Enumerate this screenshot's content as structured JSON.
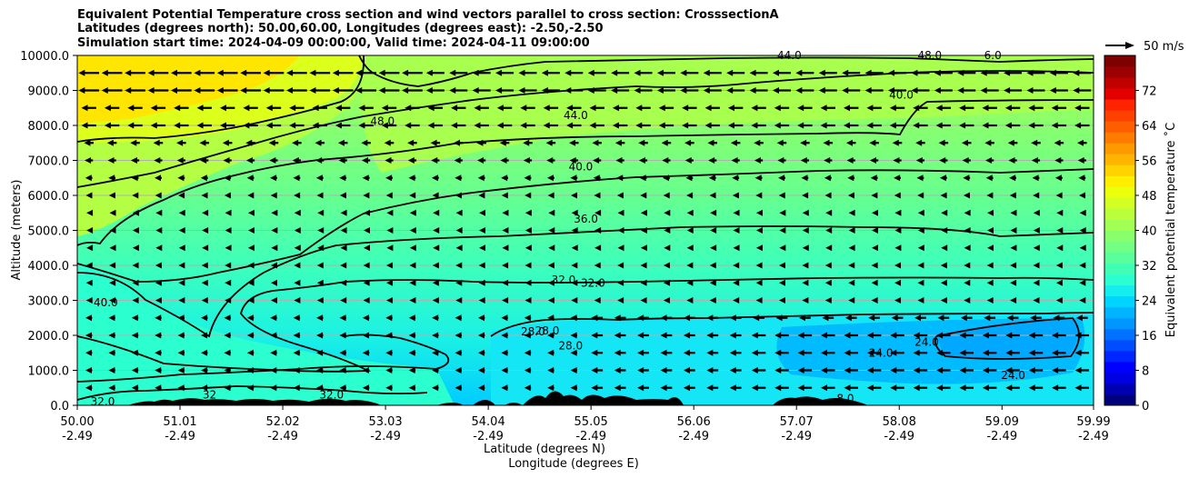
{
  "title": {
    "line1": "Equivalent Potential Temperature cross section and wind vectors parallel to cross section: CrosssectionA",
    "line2": "Latitudes (degrees north): 50.00,60.00, Longitudes (degrees east): -2.50,-2.50",
    "line3": "Simulation start time: 2024-04-09 00:00:00, Valid time: 2024-04-11 09:00:00"
  },
  "quiver_key": {
    "label": "50 m/s"
  },
  "colorbar": {
    "label": "Equivalent potential temperature ˚C",
    "ticks": [
      "0",
      "8",
      "16",
      "24",
      "32",
      "40",
      "48",
      "56",
      "64",
      "72"
    ],
    "range": [
      0,
      80
    ],
    "colors": [
      "#00007f",
      "#0000b2",
      "#0000e5",
      "#0000ff",
      "#0026ff",
      "#004cff",
      "#0072ff",
      "#0096ff",
      "#00b4ff",
      "#00d4ff",
      "#14eeee",
      "#2bffcf",
      "#40ffb5",
      "#5aff9b",
      "#72ff83",
      "#8aff6c",
      "#a2ff54",
      "#bbff3c",
      "#d4ff22",
      "#ecff0b",
      "#ffee00",
      "#ffd200",
      "#ffb500",
      "#ff9900",
      "#ff7c00",
      "#ff5e00",
      "#ff4100",
      "#ff2300",
      "#e50000",
      "#c00000",
      "#9d0000",
      "#7f0000"
    ]
  },
  "chart_data": {
    "type": "contour",
    "title": "Equivalent Potential Temperature cross section and wind vectors parallel to cross section: CrosssectionA",
    "xlabel": "Latitude (degrees N)",
    "xlabel2": "Longitude (degrees E)",
    "ylabel": "Altitude (meters)",
    "xlim": [
      50.0,
      59.99
    ],
    "ylim": [
      0,
      10000
    ],
    "x_ticks": [
      {
        "lat": "50.00",
        "lon": "-2.49",
        "v": 50.0
      },
      {
        "lat": "51.01",
        "lon": "-2.49",
        "v": 51.01
      },
      {
        "lat": "52.02",
        "lon": "-2.49",
        "v": 52.02
      },
      {
        "lat": "53.03",
        "lon": "-2.49",
        "v": 53.03
      },
      {
        "lat": "54.04",
        "lon": "-2.49",
        "v": 54.04
      },
      {
        "lat": "55.05",
        "lon": "-2.49",
        "v": 55.05
      },
      {
        "lat": "56.06",
        "lon": "-2.49",
        "v": 56.06
      },
      {
        "lat": "57.07",
        "lon": "-2.49",
        "v": 57.07
      },
      {
        "lat": "58.08",
        "lon": "-2.49",
        "v": 58.08
      },
      {
        "lat": "59.09",
        "lon": "-2.49",
        "v": 59.09
      },
      {
        "lat": "59.99",
        "lon": "-2.49",
        "v": 59.99
      }
    ],
    "y_ticks": [
      {
        "label": "0.0",
        "v": 0
      },
      {
        "label": "1000.0",
        "v": 1000
      },
      {
        "label": "2000.0",
        "v": 2000
      },
      {
        "label": "3000.0",
        "v": 3000
      },
      {
        "label": "4000.0",
        "v": 4000
      },
      {
        "label": "5000.0",
        "v": 5000
      },
      {
        "label": "6000.0",
        "v": 6000
      },
      {
        "label": "7000.0",
        "v": 7000
      },
      {
        "label": "8000.0",
        "v": 8000
      },
      {
        "label": "9000.0",
        "v": 9000
      },
      {
        "label": "10000.0",
        "v": 10000
      }
    ],
    "grid": "horizontal",
    "contour_labels": [
      {
        "text": "48.0",
        "x": 53.0,
        "y": 8120
      },
      {
        "text": "44.0",
        "x": 54.9,
        "y": 8280
      },
      {
        "text": "40.0",
        "x": 54.95,
        "y": 6820
      },
      {
        "text": "36.0",
        "x": 55.0,
        "y": 5330
      },
      {
        "text": "32.0",
        "x": 54.78,
        "y": 3580
      },
      {
        "text": "32.0",
        "x": 55.07,
        "y": 3500
      },
      {
        "text": "28.0",
        "x": 54.48,
        "y": 2100
      },
      {
        "text": "28.0",
        "x": 54.62,
        "y": 2130
      },
      {
        "text": "28.0",
        "x": 54.85,
        "y": 1700
      },
      {
        "text": "40.0",
        "x": 50.28,
        "y": 2940
      },
      {
        "text": "32.0",
        "x": 50.25,
        "y": 100
      },
      {
        "text": "32",
        "x": 51.3,
        "y": 300
      },
      {
        "text": "32.0",
        "x": 52.5,
        "y": 300
      },
      {
        "text": "44.0",
        "x": 57.0,
        "y": 10000
      },
      {
        "text": "48.0",
        "x": 58.38,
        "y": 10000
      },
      {
        "text": "6.0",
        "x": 59.0,
        "y": 10000
      },
      {
        "text": "40.0",
        "x": 58.1,
        "y": 8870
      },
      {
        "text": "24.0",
        "x": 57.9,
        "y": 1500
      },
      {
        "text": "24.0",
        "x": 58.35,
        "y": 1800
      },
      {
        "text": "24.0",
        "x": 59.2,
        "y": 860
      },
      {
        "text": "8.0",
        "x": 57.55,
        "y": 200
      }
    ],
    "wind_vectors": {
      "direction": "southward (pointing toward 50 N)",
      "reference": "50 m/s",
      "description": "strongest near 9000-10000 m, weakening to near zero at 5000-6000 m; moderate at 1000-2500 m north of 55 N"
    },
    "shaded_range": [
      24,
      52
    ]
  }
}
